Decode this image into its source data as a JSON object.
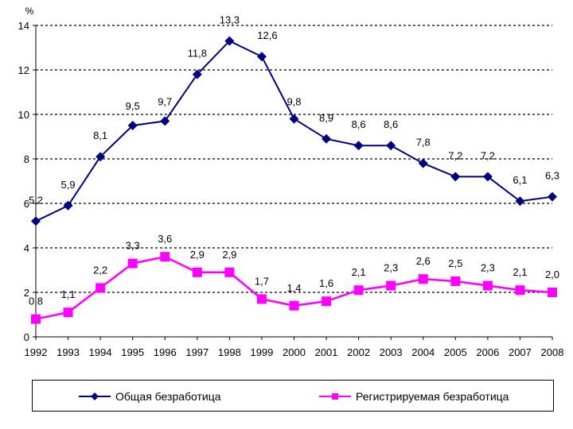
{
  "chart_data": {
    "type": "line",
    "title": "",
    "unit_label": "%",
    "xlabel": "",
    "ylabel": "%",
    "ylim": [
      0,
      14
    ],
    "yticks": [
      0,
      2,
      4,
      6,
      8,
      10,
      12,
      14
    ],
    "grid": "horizontal dashed",
    "legend": "bottom",
    "categories": [
      "1992",
      "1993",
      "1994",
      "1995",
      "1996",
      "1997",
      "1998",
      "1999",
      "2000",
      "2001",
      "2002",
      "2003",
      "2004",
      "2005",
      "2006",
      "2007",
      "2008"
    ],
    "series": [
      {
        "name": "Общая безработица",
        "color": "#000080",
        "marker": "diamond",
        "values": [
          5.2,
          5.9,
          8.1,
          9.5,
          9.7,
          11.8,
          13.3,
          12.6,
          9.8,
          8.9,
          8.6,
          8.6,
          7.8,
          7.2,
          7.2,
          6.1,
          6.3
        ],
        "labels": [
          "5,2",
          "5,9",
          "8,1",
          "9,5",
          "9,7",
          "11,8",
          "13,3",
          "12,6",
          "9,8",
          "8,9",
          "8,6",
          "8,6",
          "7,8",
          "7,2",
          "7,2",
          "6,1",
          "6,3"
        ]
      },
      {
        "name": "Регистрируемая безработица",
        "color": "#FF00FF",
        "marker": "square",
        "values": [
          0.8,
          1.1,
          2.2,
          3.3,
          3.6,
          2.9,
          2.9,
          1.7,
          1.4,
          1.6,
          2.1,
          2.3,
          2.6,
          2.5,
          2.3,
          2.1,
          2.0
        ],
        "labels": [
          "0,8",
          "1,1",
          "2,2",
          "3,3",
          "3,6",
          "2,9",
          "2,9",
          "1,7",
          "1,4",
          "1,6",
          "2,1",
          "2,3",
          "2,6",
          "2,5",
          "2,3",
          "2,1",
          "2,0"
        ]
      }
    ]
  }
}
